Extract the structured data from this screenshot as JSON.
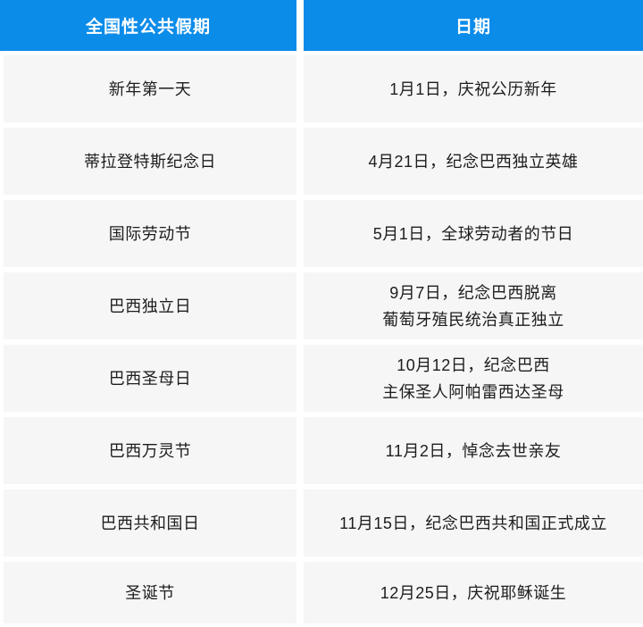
{
  "colors": {
    "header_background": "#0c8ce9",
    "header_text": "#ffffff",
    "row_background": "#f6f6f6",
    "row_text": "#1d1d1f",
    "gap": "#ffffff"
  },
  "table": {
    "headers": [
      "全国性公共假期",
      "日期"
    ],
    "rows": [
      {
        "holiday": "新年第一天",
        "date": "1月1日，庆祝公历新年"
      },
      {
        "holiday": "蒂拉登特斯纪念日",
        "date": "4月21日，纪念巴西独立英雄"
      },
      {
        "holiday": "国际劳动节",
        "date": "5月1日，全球劳动者的节日"
      },
      {
        "holiday": "巴西独立日",
        "date": "9月7日，纪念巴西脱离\n葡萄牙殖民统治真正独立"
      },
      {
        "holiday": "巴西圣母日",
        "date": "10月12日，纪念巴西\n主保圣人阿帕雷西达圣母"
      },
      {
        "holiday": "巴西万灵节",
        "date": "11月2日，悼念去世亲友"
      },
      {
        "holiday": "巴西共和国日",
        "date": "11月15日，纪念巴西共和国正式成立"
      },
      {
        "holiday": "圣诞节",
        "date": "12月25日，庆祝耶稣诞生"
      }
    ]
  },
  "chart_data": {
    "type": "table",
    "title": "全国性公共假期",
    "columns": [
      "全国性公共假期",
      "日期"
    ],
    "rows": [
      [
        "新年第一天",
        "1月1日，庆祝公历新年"
      ],
      [
        "蒂拉登特斯纪念日",
        "4月21日，纪念巴西独立英雄"
      ],
      [
        "国际劳动节",
        "5月1日，全球劳动者的节日"
      ],
      [
        "巴西独立日",
        "9月7日，纪念巴西脱离葡萄牙殖民统治真正独立"
      ],
      [
        "巴西圣母日",
        "10月12日，纪念巴西主保圣人阿帕雷西达圣母"
      ],
      [
        "巴西万灵节",
        "11月2日，悼念去世亲友"
      ],
      [
        "巴西共和国日",
        "11月15日，纪念巴西共和国正式成立"
      ],
      [
        "圣诞节",
        "12月25日，庆祝耶稣诞生"
      ]
    ]
  }
}
